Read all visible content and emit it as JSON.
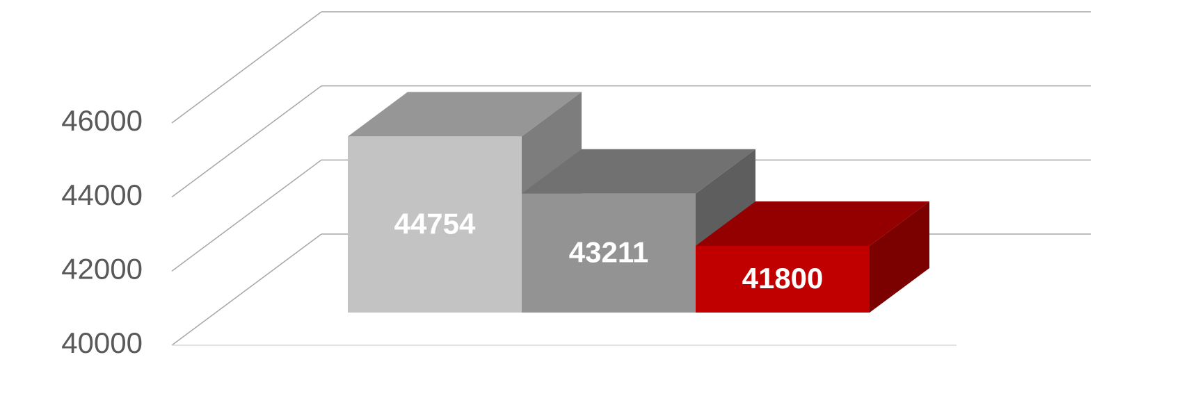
{
  "chart_data": {
    "type": "bar3d",
    "categories": [
      null,
      null,
      null
    ],
    "values": [
      44754,
      43211,
      41800
    ],
    "colors": [
      "#c3c3c3",
      "#939393",
      "#c00000"
    ],
    "ylim": [
      40000,
      46000
    ],
    "yticks": [
      40000,
      42000,
      44000,
      46000
    ],
    "grid": true
  }
}
